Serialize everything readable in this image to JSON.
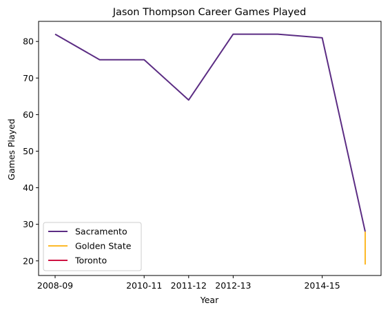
{
  "chart_data": {
    "type": "line",
    "title": "Jason Thompson  Career Games Played",
    "xlabel": "Year",
    "ylabel": "Games Played",
    "x_tick_labels": [
      "2008-09",
      "2010-11",
      "2011-12",
      "2012-13",
      "2014-15"
    ],
    "y_ticks": [
      20,
      30,
      40,
      50,
      60,
      70,
      80
    ],
    "ylim": [
      16,
      85.5
    ],
    "grid": false,
    "legend_position": "lower left",
    "series": [
      {
        "name": "Sacramento",
        "color": "#5b2c83",
        "points": [
          {
            "x": "2008-09",
            "y": 82
          },
          {
            "x": "2009-10",
            "y": 75
          },
          {
            "x": "2010-11",
            "y": 75
          },
          {
            "x": "2011-12",
            "y": 64
          },
          {
            "x": "2012-13",
            "y": 82
          },
          {
            "x": "2013-14",
            "y": 82
          },
          {
            "x": "2014-15",
            "y": 81
          },
          {
            "x": "2015-16",
            "y": 28
          }
        ]
      },
      {
        "name": "Golden State",
        "color": "#fdb927",
        "points": [
          {
            "x": "2015-16",
            "y": 28
          },
          {
            "x": "2015-16",
            "y": 19
          }
        ]
      },
      {
        "name": "Toronto",
        "color": "#ce1141",
        "points": [
          {
            "x": "2015-16",
            "y": 19
          },
          {
            "x": "2015-16",
            "y": 19
          }
        ]
      }
    ]
  }
}
